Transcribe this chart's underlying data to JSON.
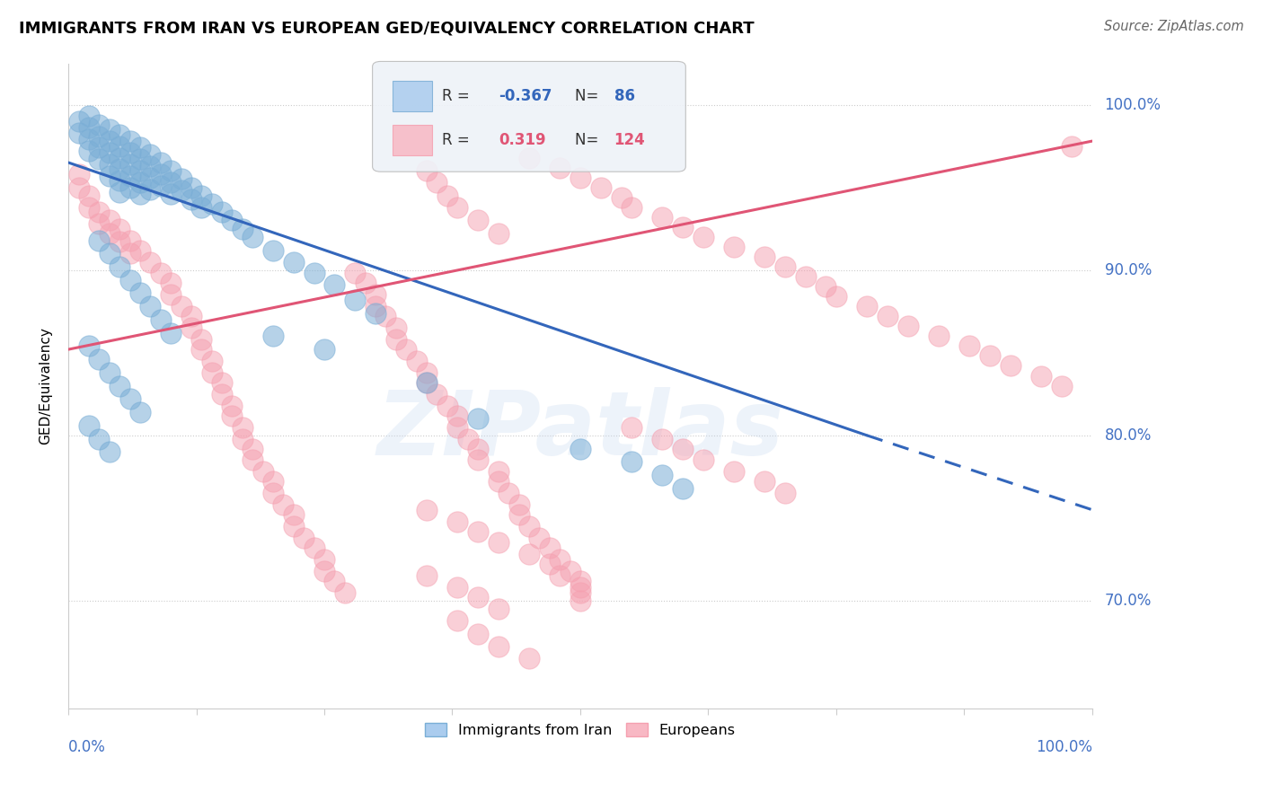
{
  "title": "IMMIGRANTS FROM IRAN VS EUROPEAN GED/EQUIVALENCY CORRELATION CHART",
  "source_text": "Source: ZipAtlas.com",
  "ylabel": "GED/Equivalency",
  "right_ytick_labels": [
    "70.0%",
    "80.0%",
    "90.0%",
    "100.0%"
  ],
  "right_ytick_values": [
    0.7,
    0.8,
    0.9,
    1.0
  ],
  "xlim": [
    0.0,
    1.0
  ],
  "ylim": [
    0.635,
    1.025
  ],
  "legend_blue_r": "-0.367",
  "legend_blue_n": "86",
  "legend_pink_r": "0.319",
  "legend_pink_n": "124",
  "blue_color": "#7aaed6",
  "pink_color": "#f5a0b0",
  "blue_line_color": "#3366bb",
  "pink_line_color": "#e05575",
  "watermark": "ZIPatlas",
  "blue_scatter": [
    [
      0.01,
      0.99
    ],
    [
      0.01,
      0.983
    ],
    [
      0.02,
      0.993
    ],
    [
      0.02,
      0.986
    ],
    [
      0.02,
      0.979
    ],
    [
      0.02,
      0.972
    ],
    [
      0.03,
      0.988
    ],
    [
      0.03,
      0.981
    ],
    [
      0.03,
      0.974
    ],
    [
      0.03,
      0.967
    ],
    [
      0.04,
      0.985
    ],
    [
      0.04,
      0.978
    ],
    [
      0.04,
      0.971
    ],
    [
      0.04,
      0.964
    ],
    [
      0.04,
      0.957
    ],
    [
      0.05,
      0.982
    ],
    [
      0.05,
      0.975
    ],
    [
      0.05,
      0.968
    ],
    [
      0.05,
      0.961
    ],
    [
      0.05,
      0.954
    ],
    [
      0.05,
      0.947
    ],
    [
      0.06,
      0.978
    ],
    [
      0.06,
      0.971
    ],
    [
      0.06,
      0.964
    ],
    [
      0.06,
      0.957
    ],
    [
      0.06,
      0.95
    ],
    [
      0.07,
      0.974
    ],
    [
      0.07,
      0.967
    ],
    [
      0.07,
      0.96
    ],
    [
      0.07,
      0.953
    ],
    [
      0.07,
      0.946
    ],
    [
      0.08,
      0.97
    ],
    [
      0.08,
      0.963
    ],
    [
      0.08,
      0.956
    ],
    [
      0.08,
      0.949
    ],
    [
      0.09,
      0.965
    ],
    [
      0.09,
      0.958
    ],
    [
      0.09,
      0.951
    ],
    [
      0.1,
      0.96
    ],
    [
      0.1,
      0.953
    ],
    [
      0.1,
      0.946
    ],
    [
      0.11,
      0.955
    ],
    [
      0.11,
      0.948
    ],
    [
      0.12,
      0.95
    ],
    [
      0.12,
      0.943
    ],
    [
      0.13,
      0.945
    ],
    [
      0.13,
      0.938
    ],
    [
      0.14,
      0.94
    ],
    [
      0.15,
      0.935
    ],
    [
      0.16,
      0.93
    ],
    [
      0.17,
      0.925
    ],
    [
      0.18,
      0.92
    ],
    [
      0.2,
      0.912
    ],
    [
      0.22,
      0.905
    ],
    [
      0.24,
      0.898
    ],
    [
      0.26,
      0.891
    ],
    [
      0.03,
      0.918
    ],
    [
      0.04,
      0.91
    ],
    [
      0.05,
      0.902
    ],
    [
      0.06,
      0.894
    ],
    [
      0.07,
      0.886
    ],
    [
      0.08,
      0.878
    ],
    [
      0.09,
      0.87
    ],
    [
      0.1,
      0.862
    ],
    [
      0.02,
      0.854
    ],
    [
      0.03,
      0.846
    ],
    [
      0.04,
      0.838
    ],
    [
      0.05,
      0.83
    ],
    [
      0.06,
      0.822
    ],
    [
      0.07,
      0.814
    ],
    [
      0.02,
      0.806
    ],
    [
      0.03,
      0.798
    ],
    [
      0.04,
      0.79
    ],
    [
      0.28,
      0.882
    ],
    [
      0.3,
      0.874
    ],
    [
      0.2,
      0.86
    ],
    [
      0.25,
      0.852
    ],
    [
      0.35,
      0.832
    ],
    [
      0.4,
      0.81
    ],
    [
      0.5,
      0.792
    ],
    [
      0.55,
      0.784
    ],
    [
      0.58,
      0.776
    ],
    [
      0.6,
      0.768
    ]
  ],
  "pink_scatter": [
    [
      0.01,
      0.958
    ],
    [
      0.01,
      0.95
    ],
    [
      0.02,
      0.945
    ],
    [
      0.02,
      0.938
    ],
    [
      0.03,
      0.935
    ],
    [
      0.03,
      0.928
    ],
    [
      0.04,
      0.93
    ],
    [
      0.04,
      0.922
    ],
    [
      0.05,
      0.925
    ],
    [
      0.05,
      0.917
    ],
    [
      0.06,
      0.918
    ],
    [
      0.06,
      0.91
    ],
    [
      0.07,
      0.912
    ],
    [
      0.08,
      0.905
    ],
    [
      0.09,
      0.898
    ],
    [
      0.1,
      0.892
    ],
    [
      0.1,
      0.885
    ],
    [
      0.11,
      0.878
    ],
    [
      0.12,
      0.872
    ],
    [
      0.12,
      0.865
    ],
    [
      0.13,
      0.858
    ],
    [
      0.13,
      0.852
    ],
    [
      0.14,
      0.845
    ],
    [
      0.14,
      0.838
    ],
    [
      0.15,
      0.832
    ],
    [
      0.15,
      0.825
    ],
    [
      0.16,
      0.818
    ],
    [
      0.16,
      0.812
    ],
    [
      0.17,
      0.805
    ],
    [
      0.17,
      0.798
    ],
    [
      0.18,
      0.792
    ],
    [
      0.18,
      0.785
    ],
    [
      0.19,
      0.778
    ],
    [
      0.2,
      0.772
    ],
    [
      0.2,
      0.765
    ],
    [
      0.21,
      0.758
    ],
    [
      0.22,
      0.752
    ],
    [
      0.22,
      0.745
    ],
    [
      0.23,
      0.738
    ],
    [
      0.24,
      0.732
    ],
    [
      0.25,
      0.725
    ],
    [
      0.25,
      0.718
    ],
    [
      0.26,
      0.712
    ],
    [
      0.27,
      0.705
    ],
    [
      0.28,
      0.898
    ],
    [
      0.29,
      0.892
    ],
    [
      0.3,
      0.885
    ],
    [
      0.3,
      0.878
    ],
    [
      0.31,
      0.872
    ],
    [
      0.32,
      0.865
    ],
    [
      0.32,
      0.858
    ],
    [
      0.33,
      0.852
    ],
    [
      0.34,
      0.845
    ],
    [
      0.35,
      0.838
    ],
    [
      0.35,
      0.832
    ],
    [
      0.36,
      0.825
    ],
    [
      0.37,
      0.818
    ],
    [
      0.38,
      0.812
    ],
    [
      0.38,
      0.805
    ],
    [
      0.39,
      0.798
    ],
    [
      0.4,
      0.792
    ],
    [
      0.4,
      0.785
    ],
    [
      0.42,
      0.778
    ],
    [
      0.42,
      0.772
    ],
    [
      0.43,
      0.765
    ],
    [
      0.44,
      0.758
    ],
    [
      0.44,
      0.752
    ],
    [
      0.45,
      0.745
    ],
    [
      0.46,
      0.738
    ],
    [
      0.47,
      0.732
    ],
    [
      0.48,
      0.725
    ],
    [
      0.49,
      0.718
    ],
    [
      0.5,
      0.712
    ],
    [
      0.5,
      0.705
    ],
    [
      0.35,
      0.96
    ],
    [
      0.36,
      0.953
    ],
    [
      0.37,
      0.945
    ],
    [
      0.38,
      0.938
    ],
    [
      0.4,
      0.93
    ],
    [
      0.42,
      0.922
    ],
    [
      0.45,
      0.968
    ],
    [
      0.48,
      0.962
    ],
    [
      0.5,
      0.956
    ],
    [
      0.52,
      0.95
    ],
    [
      0.54,
      0.944
    ],
    [
      0.55,
      0.938
    ],
    [
      0.58,
      0.932
    ],
    [
      0.6,
      0.926
    ],
    [
      0.62,
      0.92
    ],
    [
      0.65,
      0.914
    ],
    [
      0.68,
      0.908
    ],
    [
      0.7,
      0.902
    ],
    [
      0.72,
      0.896
    ],
    [
      0.74,
      0.89
    ],
    [
      0.75,
      0.884
    ],
    [
      0.78,
      0.878
    ],
    [
      0.8,
      0.872
    ],
    [
      0.82,
      0.866
    ],
    [
      0.85,
      0.86
    ],
    [
      0.88,
      0.854
    ],
    [
      0.9,
      0.848
    ],
    [
      0.92,
      0.842
    ],
    [
      0.95,
      0.836
    ],
    [
      0.97,
      0.83
    ],
    [
      0.98,
      0.975
    ],
    [
      0.55,
      0.805
    ],
    [
      0.58,
      0.798
    ],
    [
      0.6,
      0.792
    ],
    [
      0.62,
      0.785
    ],
    [
      0.65,
      0.778
    ],
    [
      0.68,
      0.772
    ],
    [
      0.7,
      0.765
    ],
    [
      0.35,
      0.715
    ],
    [
      0.38,
      0.708
    ],
    [
      0.4,
      0.702
    ],
    [
      0.42,
      0.695
    ],
    [
      0.35,
      0.755
    ],
    [
      0.38,
      0.748
    ],
    [
      0.4,
      0.742
    ],
    [
      0.42,
      0.735
    ],
    [
      0.45,
      0.728
    ],
    [
      0.47,
      0.722
    ],
    [
      0.48,
      0.715
    ],
    [
      0.5,
      0.708
    ],
    [
      0.38,
      0.688
    ],
    [
      0.4,
      0.68
    ],
    [
      0.42,
      0.672
    ],
    [
      0.45,
      0.665
    ],
    [
      0.5,
      0.7
    ]
  ],
  "blue_trendline": {
    "x_solid_start": 0.0,
    "y_solid_start": 0.965,
    "x_solid_end": 0.78,
    "y_solid_end": 0.8,
    "x_dash_start": 0.78,
    "y_dash_start": 0.8,
    "x_dash_end": 1.0,
    "y_dash_end": 0.755
  },
  "pink_trendline": {
    "x_start": 0.0,
    "y_start": 0.852,
    "x_end": 1.0,
    "y_end": 0.978
  }
}
